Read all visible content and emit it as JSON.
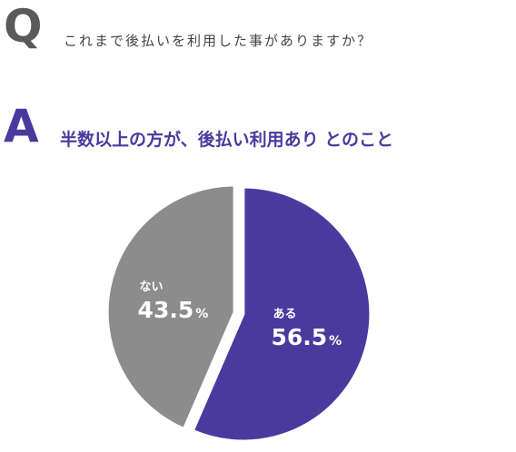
{
  "question": {
    "letter": "Q",
    "text": "これまで後払いを利用した事がありますか？"
  },
  "answer": {
    "letter": "A",
    "text": "半数以上の方が、後払い利用あり とのこと"
  },
  "colors": {
    "question_letter": "#5a5a5a",
    "accent": "#4a3a9e",
    "slice_yes": "#4a3a9e",
    "slice_no": "#8c8c8c"
  },
  "chart_data": {
    "type": "pie",
    "title": "",
    "slices": [
      {
        "label": "ある",
        "value": 56.5,
        "value_text": "56.5",
        "unit": "%",
        "color": "#4a3a9e"
      },
      {
        "label": "ない",
        "value": 43.5,
        "value_text": "43.5",
        "unit": "%",
        "color": "#8c8c8c"
      }
    ],
    "start_angle_deg": 0,
    "direction": "clockwise",
    "exploded": true
  }
}
